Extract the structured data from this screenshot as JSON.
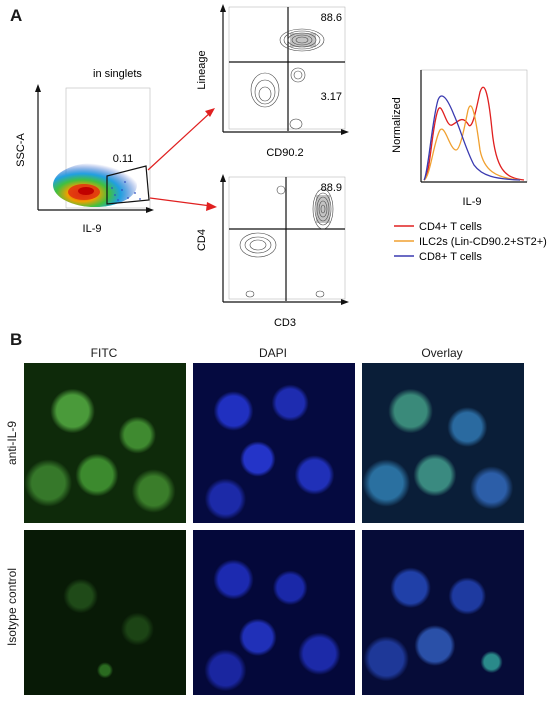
{
  "panel_a": {
    "letter": "A",
    "scatter": {
      "subtitle": "in singlets",
      "ylabel": "SSC-A",
      "xlabel": "IL-9",
      "gate_value": "0.11"
    },
    "plot_lineage": {
      "ylabel": "Lineage",
      "xlabel": "CD90.2",
      "upper_right": "88.6",
      "lower_right": "3.17"
    },
    "plot_cd4": {
      "ylabel": "CD4",
      "xlabel": "CD3",
      "upper_right": "88.9"
    },
    "histogram": {
      "ylabel": "Normalized",
      "xlabel": "IL-9"
    },
    "legend": [
      {
        "label": "CD4+ T cells",
        "color": "#e02020"
      },
      {
        "label": "ILC2s (Lin-CD90.2+ST2+)",
        "color": "#f0a030"
      },
      {
        "label": "CD8+ T cells",
        "color": "#3a3ab0"
      }
    ],
    "arrow_color": "#e02020"
  },
  "panel_b": {
    "letter": "B",
    "columns": [
      "FITC",
      "DAPI",
      "Overlay"
    ],
    "rows": [
      "anti-IL-9",
      "Isotype control"
    ]
  }
}
